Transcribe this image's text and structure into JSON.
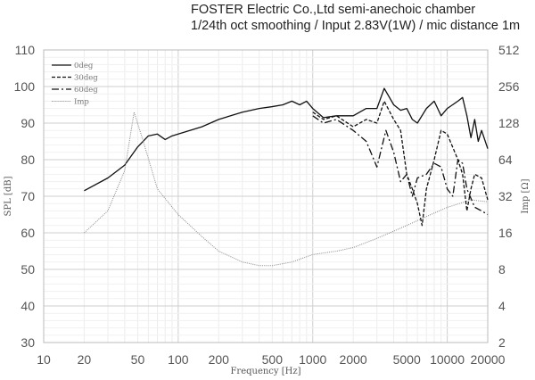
{
  "chart_data": {
    "type": "line",
    "title": [
      "FOSTER Electric Co.,Ltd  semi-anechoic chamber",
      "1/24th oct smoothing / Input 2.83V(1W) / mic distance 1m"
    ],
    "xlabel": "Frequency [Hz]",
    "ylabel": "SPL [dB]",
    "y2label": "Imp [Ω]",
    "xscale": "log",
    "xlim": [
      10,
      20000
    ],
    "ylim": [
      30,
      110
    ],
    "y2lim": [
      2,
      512
    ],
    "y2scale": "log2",
    "xticks": [
      10,
      20,
      50,
      100,
      200,
      500,
      1000,
      2000,
      5000,
      10000,
      20000
    ],
    "yticks": [
      30,
      40,
      50,
      60,
      70,
      80,
      90,
      100,
      110
    ],
    "y2ticks": [
      2,
      4,
      8,
      16,
      32,
      64,
      128,
      256,
      512
    ],
    "grid": true,
    "legend_position": "top-left",
    "series": [
      {
        "name": "0deg",
        "axis": "left",
        "style": "solid",
        "x": [
          20,
          30,
          40,
          50,
          60,
          70,
          80,
          90,
          100,
          150,
          200,
          300,
          400,
          500,
          600,
          700,
          800,
          900,
          1000,
          1200,
          1500,
          2000,
          2500,
          3000,
          3400,
          4000,
          4500,
          5000,
          5500,
          6000,
          7000,
          8000,
          9000,
          10000,
          12000,
          13000,
          14000,
          15000,
          16000,
          17000,
          18000,
          20000
        ],
        "y": [
          71.5,
          75,
          78.5,
          83.5,
          86.5,
          87,
          85.5,
          86.5,
          87,
          89,
          91,
          93,
          94,
          94.5,
          95,
          96,
          95,
          96,
          94,
          91.5,
          92,
          92,
          94,
          94,
          99.5,
          95,
          93.5,
          94,
          91,
          90,
          94,
          96,
          92,
          94,
          96,
          97,
          92,
          86,
          91,
          85,
          88,
          83
        ]
      },
      {
        "name": "30deg",
        "axis": "left",
        "style": "dashed",
        "x": [
          1000,
          1200,
          1500,
          2000,
          2500,
          3000,
          3400,
          4000,
          4500,
          5000,
          5500,
          6000,
          6500,
          7000,
          8000,
          9000,
          10000,
          12000,
          13000,
          14000,
          15000,
          16000,
          18000,
          20000
        ],
        "y": [
          93,
          91,
          92,
          89,
          91,
          90,
          96,
          91,
          88,
          76,
          72,
          68,
          62,
          72,
          80,
          88,
          87,
          80,
          76,
          66,
          72,
          76,
          75,
          69
        ]
      },
      {
        "name": "60deg",
        "axis": "left",
        "style": "dashdot",
        "x": [
          1000,
          1200,
          1500,
          2000,
          2500,
          3000,
          3500,
          4000,
          4500,
          5000,
          5500,
          6000,
          7000,
          8000,
          9000,
          10000,
          11000,
          12000,
          13000,
          14000,
          16000,
          18000,
          20000
        ],
        "y": [
          92,
          90,
          91,
          88,
          85,
          78,
          88,
          82,
          74,
          76,
          70,
          75,
          76,
          79,
          78,
          72,
          70,
          80,
          79,
          72,
          67,
          66,
          65
        ]
      },
      {
        "name": "Imp",
        "axis": "right",
        "style": "dotted",
        "x": [
          20,
          30,
          40,
          47,
          55,
          70,
          100,
          150,
          200,
          300,
          400,
          500,
          700,
          1000,
          1500,
          2000,
          3000,
          5000,
          7000,
          10000,
          15000,
          20000
        ],
        "y": [
          16,
          24.3,
          52,
          157.6,
          90.5,
          36.8,
          22.6,
          14.9,
          11.3,
          9.2,
          8.6,
          8.6,
          9.2,
          10.6,
          11.3,
          12.1,
          14.4,
          18.4,
          21.8,
          25.9,
          29.9,
          28.8
        ]
      }
    ]
  }
}
